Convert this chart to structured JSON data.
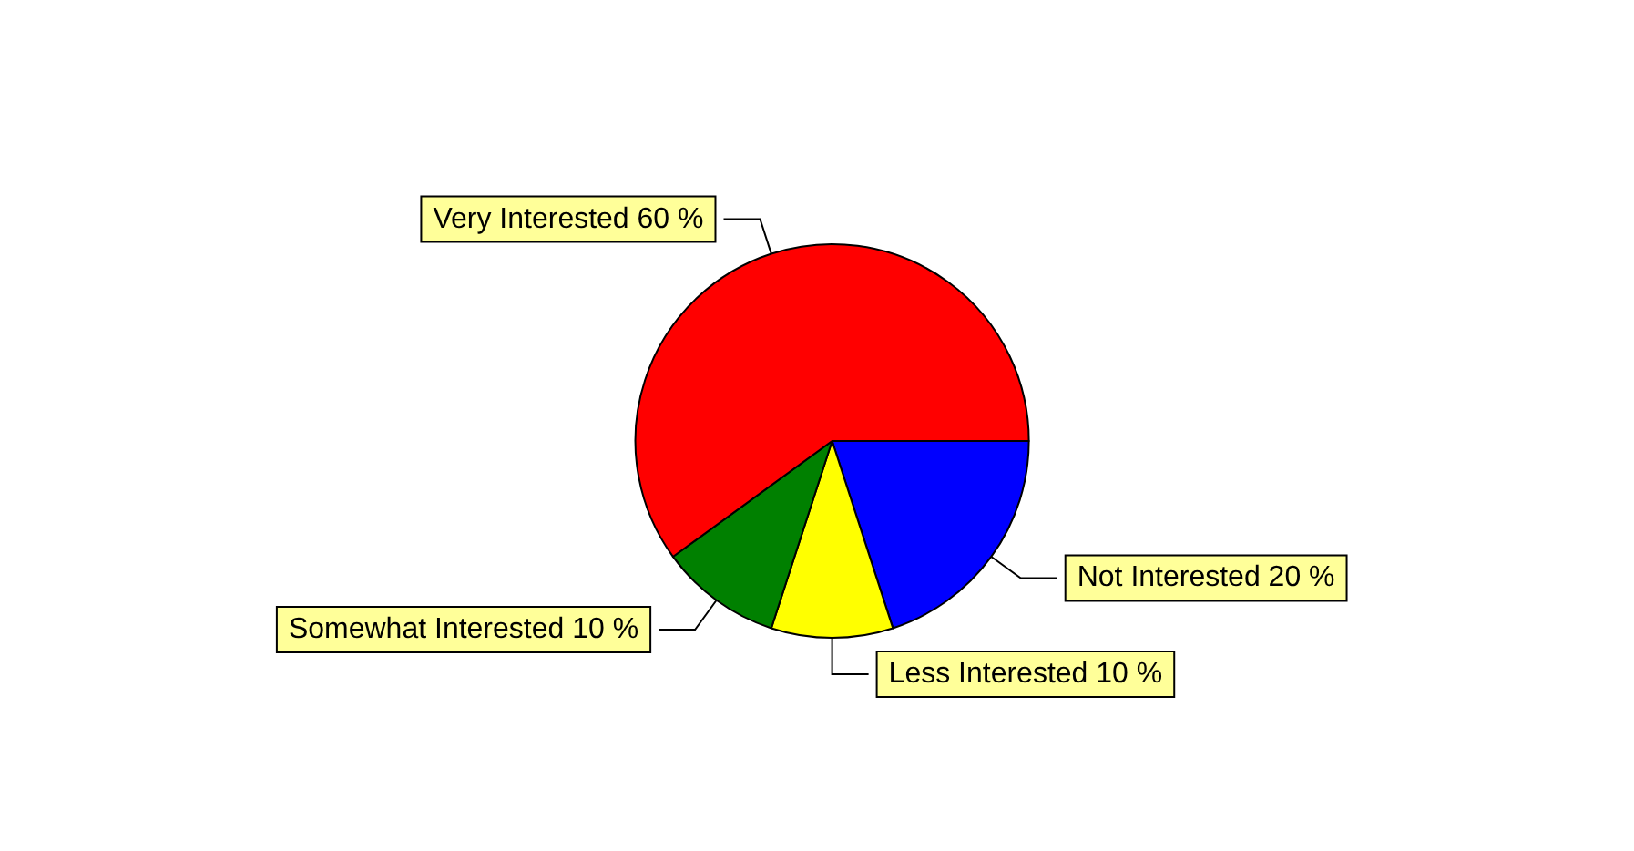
{
  "chart_data": {
    "type": "pie",
    "categories": [
      "Not Interested",
      "Less Interested",
      "Somewhat Interested",
      "Very Interested"
    ],
    "values": [
      20,
      10,
      10,
      60
    ],
    "value_labels": [
      "20 %",
      "10 %",
      "10 %",
      "60 %"
    ],
    "colors": [
      "#0000ff",
      "#ffff00",
      "#008000",
      "#ff0000"
    ],
    "legend": false
  }
}
